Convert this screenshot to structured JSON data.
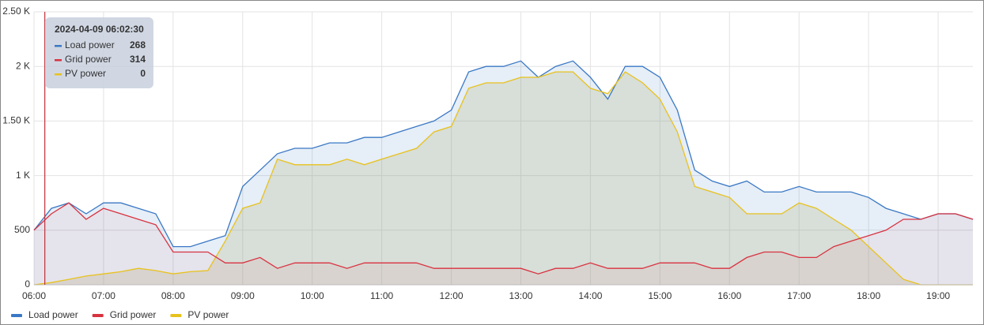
{
  "chart_data": {
    "type": "line",
    "x": [
      "06:00",
      "06:15",
      "06:30",
      "06:45",
      "07:00",
      "07:15",
      "07:30",
      "07:45",
      "08:00",
      "08:15",
      "08:30",
      "08:45",
      "09:00",
      "09:15",
      "09:30",
      "09:45",
      "10:00",
      "10:15",
      "10:30",
      "10:45",
      "11:00",
      "11:15",
      "11:30",
      "11:45",
      "12:00",
      "12:15",
      "12:30",
      "12:45",
      "13:00",
      "13:15",
      "13:30",
      "13:45",
      "14:00",
      "14:15",
      "14:30",
      "14:45",
      "15:00",
      "15:15",
      "15:30",
      "15:45",
      "16:00",
      "16:15",
      "16:30",
      "16:45",
      "17:00",
      "17:15",
      "17:30",
      "17:45",
      "18:00",
      "18:15",
      "18:30",
      "18:45",
      "19:00",
      "19:15",
      "19:30"
    ],
    "series": [
      {
        "name": "Load power",
        "color": "#3a78c4",
        "fill": "rgba(58,120,196,0.13)",
        "values": [
          500,
          700,
          750,
          650,
          750,
          750,
          700,
          650,
          350,
          350,
          400,
          450,
          900,
          1050,
          1200,
          1250,
          1250,
          1300,
          1300,
          1350,
          1350,
          1400,
          1450,
          1500,
          1600,
          1950,
          2000,
          2000,
          2050,
          1900,
          2000,
          2050,
          1900,
          1700,
          2000,
          2000,
          1900,
          1600,
          1050,
          950,
          900,
          950,
          850,
          850,
          900,
          850,
          850,
          850,
          800,
          700,
          650,
          600,
          650,
          650,
          600
        ]
      },
      {
        "name": "Grid power",
        "color": "#d9323f",
        "fill": "rgba(217,50,63,0.06)",
        "values": [
          500,
          650,
          750,
          600,
          700,
          650,
          600,
          550,
          300,
          300,
          300,
          200,
          200,
          250,
          150,
          200,
          200,
          200,
          150,
          200,
          200,
          200,
          200,
          150,
          150,
          150,
          150,
          150,
          150,
          100,
          150,
          150,
          200,
          150,
          150,
          150,
          200,
          200,
          200,
          150,
          150,
          250,
          300,
          300,
          250,
          250,
          350,
          400,
          450,
          500,
          600,
          600,
          650,
          650,
          600
        ]
      },
      {
        "name": "PV power",
        "color": "#e8c21c",
        "fill": "rgba(170,170,110,0.22)",
        "values": [
          0,
          20,
          50,
          80,
          100,
          120,
          150,
          130,
          100,
          120,
          130,
          400,
          700,
          750,
          1150,
          1100,
          1100,
          1100,
          1150,
          1100,
          1150,
          1200,
          1250,
          1400,
          1450,
          1800,
          1850,
          1850,
          1900,
          1900,
          1950,
          1950,
          1800,
          1750,
          1950,
          1850,
          1700,
          1400,
          900,
          850,
          800,
          650,
          650,
          650,
          750,
          700,
          600,
          500,
          350,
          200,
          50,
          0,
          0,
          0,
          0
        ]
      }
    ],
    "xlim": [
      "06:00",
      "19:30"
    ],
    "xticks": [
      "06:00",
      "07:00",
      "08:00",
      "09:00",
      "10:00",
      "11:00",
      "12:00",
      "13:00",
      "14:00",
      "15:00",
      "16:00",
      "17:00",
      "18:00",
      "19:00"
    ],
    "ylim": [
      0,
      2500
    ],
    "yticks": [
      0,
      500,
      {
        "value": 1000,
        "label": "1 K"
      },
      {
        "value": 1500,
        "label": "1.50 K"
      },
      {
        "value": 2000,
        "label": "2 K"
      },
      {
        "value": 2500,
        "label": "2.50 K"
      }
    ],
    "grid": true,
    "legend": "bottom",
    "tooltip": {
      "title": "2024-04-09 06:02:30",
      "values": [
        268,
        314,
        0
      ]
    }
  }
}
